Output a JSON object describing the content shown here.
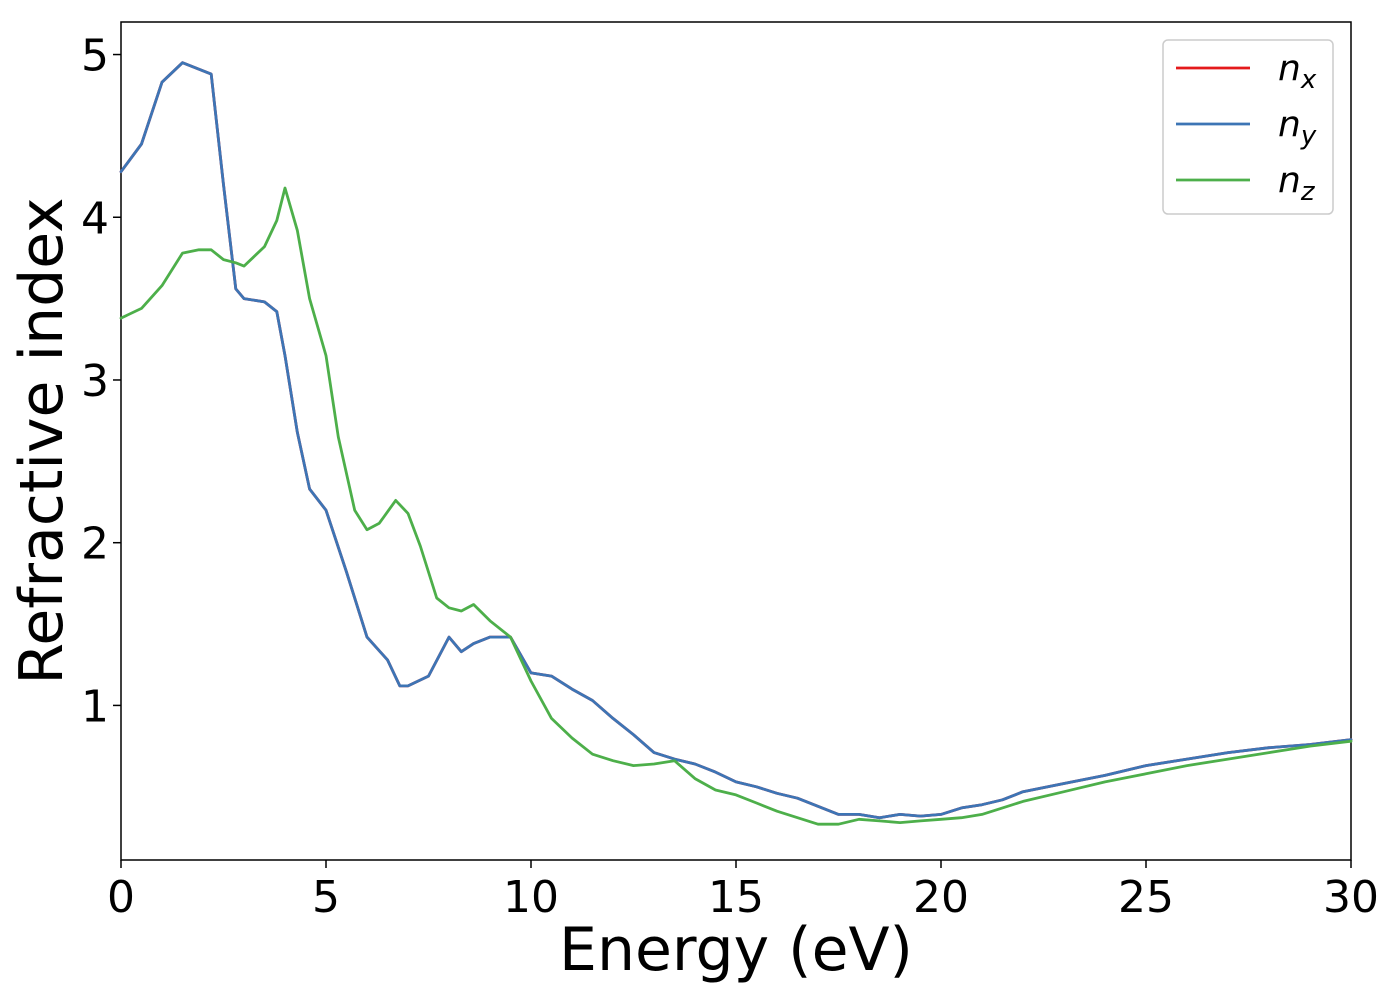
{
  "chart_data": {
    "type": "line",
    "title": "",
    "xlabel": "Energy (eV)",
    "ylabel": "Refractive index",
    "xlim": [
      0,
      30
    ],
    "ylim": [
      0.05,
      5.2
    ],
    "xticks": [
      0,
      5,
      10,
      15,
      20,
      25,
      30
    ],
    "yticks": [
      1,
      2,
      3,
      4,
      5
    ],
    "grid": false,
    "legend_position": "top-right",
    "series": [
      {
        "name": "n_x",
        "label_base": "n",
        "label_sub": "x",
        "color": "#e41a1c",
        "x": [
          0,
          0.5,
          1.0,
          1.5,
          2.0,
          2.2,
          2.5,
          2.8,
          3.0,
          3.5,
          3.8,
          4.0,
          4.3,
          4.6,
          5.0,
          5.5,
          6.0,
          6.5,
          6.8,
          7.0,
          7.5,
          8.0,
          8.3,
          8.6,
          9.0,
          9.5,
          10.0,
          10.5,
          11.0,
          11.5,
          12.0,
          12.5,
          13.0,
          13.5,
          14.0,
          14.5,
          15.0,
          15.5,
          16.0,
          16.5,
          17.0,
          17.5,
          18.0,
          18.5,
          19.0,
          19.5,
          20.0,
          20.5,
          21.0,
          21.5,
          22.0,
          23.0,
          24.0,
          25.0,
          26.0,
          27.0,
          28.0,
          29.0,
          30.0
        ],
        "y": [
          4.28,
          4.45,
          4.83,
          4.95,
          4.9,
          4.88,
          4.2,
          3.56,
          3.5,
          3.48,
          3.42,
          3.15,
          2.68,
          2.33,
          2.2,
          1.82,
          1.42,
          1.28,
          1.12,
          1.12,
          1.18,
          1.42,
          1.33,
          1.38,
          1.42,
          1.42,
          1.2,
          1.18,
          1.1,
          1.03,
          0.92,
          0.82,
          0.71,
          0.67,
          0.64,
          0.59,
          0.53,
          0.5,
          0.46,
          0.43,
          0.38,
          0.33,
          0.33,
          0.31,
          0.33,
          0.32,
          0.33,
          0.37,
          0.39,
          0.42,
          0.47,
          0.52,
          0.57,
          0.63,
          0.67,
          0.71,
          0.74,
          0.76,
          0.79
        ]
      },
      {
        "name": "n_y",
        "label_base": "n",
        "label_sub": "y",
        "color": "#3d75b5",
        "x": [
          0,
          0.5,
          1.0,
          1.5,
          2.0,
          2.2,
          2.5,
          2.8,
          3.0,
          3.5,
          3.8,
          4.0,
          4.3,
          4.6,
          5.0,
          5.5,
          6.0,
          6.5,
          6.8,
          7.0,
          7.5,
          8.0,
          8.3,
          8.6,
          9.0,
          9.5,
          10.0,
          10.5,
          11.0,
          11.5,
          12.0,
          12.5,
          13.0,
          13.5,
          14.0,
          14.5,
          15.0,
          15.5,
          16.0,
          16.5,
          17.0,
          17.5,
          18.0,
          18.5,
          19.0,
          19.5,
          20.0,
          20.5,
          21.0,
          21.5,
          22.0,
          23.0,
          24.0,
          25.0,
          26.0,
          27.0,
          28.0,
          29.0,
          30.0
        ],
        "y": [
          4.28,
          4.45,
          4.83,
          4.95,
          4.9,
          4.88,
          4.2,
          3.56,
          3.5,
          3.48,
          3.42,
          3.15,
          2.68,
          2.33,
          2.2,
          1.82,
          1.42,
          1.28,
          1.12,
          1.12,
          1.18,
          1.42,
          1.33,
          1.38,
          1.42,
          1.42,
          1.2,
          1.18,
          1.1,
          1.03,
          0.92,
          0.82,
          0.71,
          0.67,
          0.64,
          0.59,
          0.53,
          0.5,
          0.46,
          0.43,
          0.38,
          0.33,
          0.33,
          0.31,
          0.33,
          0.32,
          0.33,
          0.37,
          0.39,
          0.42,
          0.47,
          0.52,
          0.57,
          0.63,
          0.67,
          0.71,
          0.74,
          0.76,
          0.79
        ]
      },
      {
        "name": "n_z",
        "label_base": "n",
        "label_sub": "z",
        "color": "#4daf4a",
        "x": [
          0,
          0.5,
          1.0,
          1.5,
          1.9,
          2.2,
          2.5,
          2.8,
          3.0,
          3.5,
          3.8,
          4.0,
          4.3,
          4.6,
          5.0,
          5.3,
          5.7,
          6.0,
          6.3,
          6.7,
          7.0,
          7.3,
          7.7,
          8.0,
          8.3,
          8.6,
          9.0,
          9.5,
          10.0,
          10.5,
          11.0,
          11.5,
          12.0,
          12.5,
          13.0,
          13.5,
          14.0,
          14.5,
          15.0,
          15.5,
          16.0,
          16.5,
          17.0,
          17.5,
          18.0,
          18.5,
          19.0,
          19.5,
          20.0,
          20.5,
          21.0,
          21.5,
          22.0,
          23.0,
          24.0,
          25.0,
          26.0,
          27.0,
          28.0,
          29.0,
          30.0
        ],
        "y": [
          3.38,
          3.44,
          3.58,
          3.78,
          3.8,
          3.8,
          3.74,
          3.72,
          3.7,
          3.82,
          3.98,
          4.18,
          3.92,
          3.5,
          3.15,
          2.65,
          2.2,
          2.08,
          2.12,
          2.26,
          2.18,
          1.98,
          1.66,
          1.6,
          1.58,
          1.62,
          1.52,
          1.42,
          1.15,
          0.92,
          0.8,
          0.7,
          0.66,
          0.63,
          0.64,
          0.66,
          0.55,
          0.48,
          0.45,
          0.4,
          0.35,
          0.31,
          0.27,
          0.27,
          0.3,
          0.29,
          0.28,
          0.29,
          0.3,
          0.31,
          0.33,
          0.37,
          0.41,
          0.47,
          0.53,
          0.58,
          0.63,
          0.67,
          0.71,
          0.75,
          0.78
        ]
      }
    ]
  }
}
